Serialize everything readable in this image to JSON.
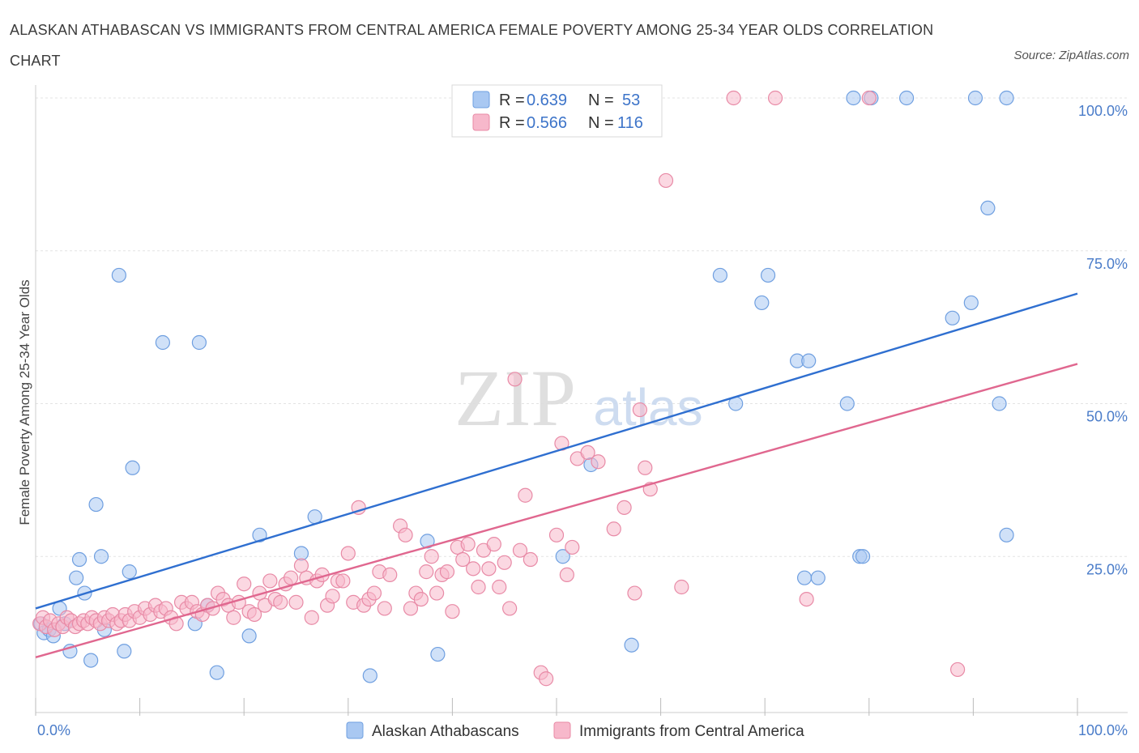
{
  "title": "ALASKAN ATHABASCAN VS IMMIGRANTS FROM CENTRAL AMERICA FEMALE POVERTY AMONG 25-34 YEAR OLDS CORRELATION CHART",
  "source": "Source: ZipAtlas.com",
  "watermark": {
    "zip": "ZIP",
    "atlas": "atlas"
  },
  "legend_box": {
    "rows": [
      {
        "r_label": "R =",
        "r_value": "0.639",
        "n_label": "N =",
        "n_value": "53",
        "color": "#a9c8f2"
      },
      {
        "r_label": "R =",
        "r_value": "0.566",
        "n_label": "N =",
        "n_value": "116",
        "color": "#f7b8cb"
      }
    ]
  },
  "chart_data": {
    "type": "scatter",
    "xlabel": "",
    "ylabel": "Female Poverty Among 25-34 Year Olds",
    "xlim": [
      0,
      100
    ],
    "ylim": [
      0,
      100
    ],
    "x_tick_labels": [
      {
        "value": 0,
        "label": "0.0%"
      },
      {
        "value": 100,
        "label": "100.0%"
      }
    ],
    "y_tick_labels": [
      {
        "value": 25,
        "label": "25.0%"
      },
      {
        "value": 50,
        "label": "50.0%"
      },
      {
        "value": 75,
        "label": "75.0%"
      },
      {
        "value": 100,
        "label": "100.0%"
      }
    ],
    "grid": true,
    "legend_position": "bottom",
    "series": [
      {
        "name": "Alaskan Athabascans",
        "color": "#a9c8f2",
        "stroke": "#6f9fe0",
        "line_color": "#2f6fd0",
        "trend": {
          "x": [
            0,
            100
          ],
          "y": [
            16.5,
            68
          ]
        },
        "points": [
          [
            0.5,
            14
          ],
          [
            0.8,
            12.5
          ],
          [
            1.3,
            13
          ],
          [
            1.7,
            12
          ],
          [
            2.3,
            16.5
          ],
          [
            2.8,
            14
          ],
          [
            3.3,
            9.5
          ],
          [
            3.9,
            21.5
          ],
          [
            4.2,
            24.5
          ],
          [
            4.7,
            19
          ],
          [
            5.3,
            8
          ],
          [
            5.8,
            33.5
          ],
          [
            6.3,
            25
          ],
          [
            6.6,
            13
          ],
          [
            8,
            71
          ],
          [
            8.5,
            9.5
          ],
          [
            9,
            22.5
          ],
          [
            9.3,
            39.5
          ],
          [
            12.2,
            60
          ],
          [
            15.3,
            14
          ],
          [
            15.7,
            60
          ],
          [
            16.5,
            17
          ],
          [
            17.4,
            6
          ],
          [
            20.5,
            12
          ],
          [
            21.5,
            28.5
          ],
          [
            25.5,
            25.5
          ],
          [
            26.8,
            31.5
          ],
          [
            32.1,
            5.5
          ],
          [
            37.6,
            27.5
          ],
          [
            38.6,
            9
          ],
          [
            50.6,
            25
          ],
          [
            53.3,
            40
          ],
          [
            57.2,
            10.5
          ],
          [
            65.7,
            71
          ],
          [
            67.2,
            50
          ],
          [
            69.7,
            66.5
          ],
          [
            70.3,
            71
          ],
          [
            73.1,
            57
          ],
          [
            74.2,
            57
          ],
          [
            73.8,
            21.5
          ],
          [
            75.1,
            21.5
          ],
          [
            77.9,
            50
          ],
          [
            79.1,
            25
          ],
          [
            79.4,
            25
          ],
          [
            78.5,
            100
          ],
          [
            80.2,
            100
          ],
          [
            83.6,
            100
          ],
          [
            88,
            64
          ],
          [
            89.8,
            66.5
          ],
          [
            90.2,
            100
          ],
          [
            91.4,
            82
          ],
          [
            92.5,
            50
          ],
          [
            93.2,
            28.5
          ],
          [
            93.2,
            100
          ]
        ]
      },
      {
        "name": "Immigrants from Central America",
        "color": "#f7b8cb",
        "stroke": "#e88aa6",
        "line_color": "#e0678f",
        "trend": {
          "x": [
            0,
            100
          ],
          "y": [
            8.5,
            56.5
          ]
        },
        "points": [
          [
            0.4,
            14
          ],
          [
            0.7,
            15
          ],
          [
            1,
            13.5
          ],
          [
            1.4,
            14.5
          ],
          [
            1.8,
            13
          ],
          [
            2.2,
            14
          ],
          [
            2.6,
            13.5
          ],
          [
            3,
            15
          ],
          [
            3.4,
            14.5
          ],
          [
            3.8,
            13.5
          ],
          [
            4.2,
            14
          ],
          [
            4.6,
            14.5
          ],
          [
            5,
            14
          ],
          [
            5.4,
            15
          ],
          [
            5.8,
            14.5
          ],
          [
            6.2,
            14
          ],
          [
            6.6,
            15
          ],
          [
            7,
            14.5
          ],
          [
            7.4,
            15.5
          ],
          [
            7.8,
            14
          ],
          [
            8.2,
            14.5
          ],
          [
            8.6,
            15.5
          ],
          [
            9,
            14.5
          ],
          [
            9.5,
            16
          ],
          [
            10,
            15
          ],
          [
            10.5,
            16.5
          ],
          [
            11,
            15.5
          ],
          [
            11.5,
            17
          ],
          [
            12,
            16
          ],
          [
            12.5,
            16.5
          ],
          [
            13,
            15
          ],
          [
            13.5,
            14
          ],
          [
            14,
            17.5
          ],
          [
            14.5,
            16.5
          ],
          [
            15,
            17.5
          ],
          [
            15.5,
            16
          ],
          [
            16,
            15.5
          ],
          [
            16.5,
            17
          ],
          [
            17,
            16.5
          ],
          [
            17.5,
            19
          ],
          [
            18,
            18
          ],
          [
            18.5,
            17
          ],
          [
            19,
            15
          ],
          [
            19.5,
            17.5
          ],
          [
            20,
            20.5
          ],
          [
            20.5,
            16
          ],
          [
            21,
            15.5
          ],
          [
            21.5,
            19
          ],
          [
            22,
            17
          ],
          [
            22.5,
            21
          ],
          [
            23,
            18
          ],
          [
            23.5,
            17.5
          ],
          [
            24,
            20.5
          ],
          [
            24.5,
            21.5
          ],
          [
            25,
            17.5
          ],
          [
            25.5,
            23.5
          ],
          [
            26,
            21.5
          ],
          [
            26.5,
            15
          ],
          [
            27,
            21
          ],
          [
            27.5,
            22
          ],
          [
            28,
            17
          ],
          [
            28.5,
            18.5
          ],
          [
            29,
            21
          ],
          [
            29.5,
            21
          ],
          [
            30,
            25.5
          ],
          [
            30.5,
            17.5
          ],
          [
            31,
            33
          ],
          [
            31.5,
            17
          ],
          [
            32,
            18
          ],
          [
            32.5,
            19
          ],
          [
            33,
            22.5
          ],
          [
            33.5,
            16.5
          ],
          [
            34,
            22
          ],
          [
            35,
            30
          ],
          [
            35.5,
            28.5
          ],
          [
            36,
            16.5
          ],
          [
            36.5,
            19
          ],
          [
            37,
            18
          ],
          [
            37.5,
            22.5
          ],
          [
            38,
            25
          ],
          [
            38.5,
            19
          ],
          [
            39,
            22
          ],
          [
            39.5,
            22.5
          ],
          [
            40,
            16
          ],
          [
            40.5,
            26.5
          ],
          [
            41,
            24.5
          ],
          [
            41.5,
            27
          ],
          [
            42,
            23
          ],
          [
            42.5,
            20
          ],
          [
            43,
            26
          ],
          [
            43.5,
            23
          ],
          [
            44,
            27
          ],
          [
            44.5,
            20
          ],
          [
            45,
            24
          ],
          [
            45.5,
            16.5
          ],
          [
            46,
            54
          ],
          [
            46.5,
            26
          ],
          [
            47,
            35
          ],
          [
            47.5,
            24.5
          ],
          [
            48.5,
            6
          ],
          [
            49,
            5
          ],
          [
            50,
            28.5
          ],
          [
            50.5,
            43.5
          ],
          [
            51,
            22
          ],
          [
            51.5,
            26.5
          ],
          [
            52,
            41
          ],
          [
            53,
            42
          ],
          [
            54,
            40.5
          ],
          [
            55.5,
            29.5
          ],
          [
            56.5,
            33
          ],
          [
            57.5,
            19
          ],
          [
            58.5,
            39.5
          ],
          [
            58,
            49
          ],
          [
            59,
            36
          ],
          [
            60.5,
            86.5
          ],
          [
            62,
            20
          ],
          [
            67,
            100
          ],
          [
            71,
            100
          ],
          [
            74,
            18
          ],
          [
            80,
            100
          ],
          [
            88.5,
            6.5
          ]
        ]
      }
    ]
  }
}
